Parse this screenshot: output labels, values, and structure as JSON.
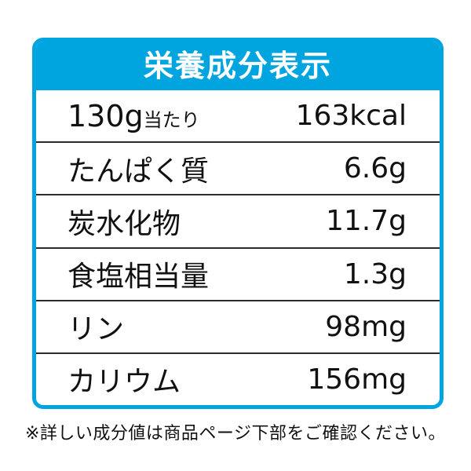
{
  "table": {
    "title": "栄養成分表示",
    "rows": [
      {
        "label": "130g",
        "suffix": "当たり",
        "value": "163kcal"
      },
      {
        "label": "たんぱく質",
        "value": "6.6g"
      },
      {
        "label": "炭水化物",
        "value": "11.7g"
      },
      {
        "label": "食塩相当量",
        "value": "1.3g"
      },
      {
        "label": "リン",
        "value": "98mg"
      },
      {
        "label": "カリウム",
        "value": "156mg"
      }
    ],
    "footnote": "※詳しい成分値は商品ページ下部をご確認ください。"
  },
  "colors": {
    "accent": "#00A5E0",
    "divider": "#2B2B2B",
    "text": "#111111",
    "title_text": "#FFFFFF",
    "background": "#FFFFFF"
  }
}
